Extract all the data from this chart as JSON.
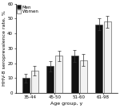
{
  "categories": [
    "35-44",
    "45-50",
    "51-60",
    "61-98"
  ],
  "men_values": [
    10,
    18,
    25,
    46
  ],
  "women_values": [
    15,
    25,
    22,
    48
  ],
  "men_errors": [
    3,
    3.5,
    4,
    4
  ],
  "women_errors": [
    3,
    3.5,
    4,
    4
  ],
  "men_color": "#111111",
  "women_color": "#f2f2f2",
  "men_label": "Men",
  "women_label": "Women",
  "xlabel": "Age group, y",
  "ylabel": "HHV-8 seroprevalence rate, %",
  "ylim": [
    0,
    60
  ],
  "yticks": [
    0,
    10,
    20,
    30,
    40,
    50,
    60
  ],
  "bar_width": 0.3,
  "axis_fontsize": 4.5,
  "tick_fontsize": 4.0,
  "legend_fontsize": 4.0,
  "edge_color": "#444444",
  "bar_gap": 0.06
}
